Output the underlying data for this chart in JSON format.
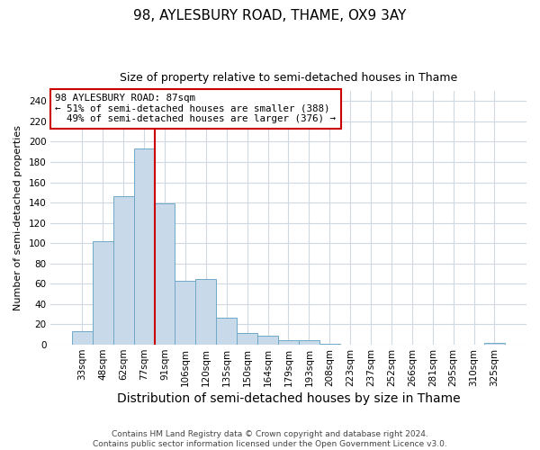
{
  "title1": "98, AYLESBURY ROAD, THAME, OX9 3AY",
  "title2": "Size of property relative to semi-detached houses in Thame",
  "xlabel": "Distribution of semi-detached houses by size in Thame",
  "ylabel": "Number of semi-detached properties",
  "bar_labels": [
    "33sqm",
    "48sqm",
    "62sqm",
    "77sqm",
    "91sqm",
    "106sqm",
    "120sqm",
    "135sqm",
    "150sqm",
    "164sqm",
    "179sqm",
    "193sqm",
    "208sqm",
    "223sqm",
    "237sqm",
    "252sqm",
    "266sqm",
    "281sqm",
    "295sqm",
    "310sqm",
    "325sqm"
  ],
  "bar_values": [
    13,
    102,
    146,
    193,
    139,
    63,
    65,
    26,
    11,
    9,
    4,
    4,
    1,
    0,
    0,
    0,
    0,
    0,
    0,
    0,
    2
  ],
  "bar_color": "#c8d9ea",
  "bar_edge_color": "#6fa8c8",
  "vline_color": "#cc0000",
  "vline_x_index": 4,
  "annotation_title": "98 AYLESBURY ROAD: 87sqm",
  "annotation_line1": "← 51% of semi-detached houses are smaller (388)",
  "annotation_line2": "  49% of semi-detached houses are larger (376) →",
  "annotation_box_edge_color": "#cc0000",
  "ylim": [
    0,
    250
  ],
  "yticks": [
    0,
    20,
    40,
    60,
    80,
    100,
    120,
    140,
    160,
    180,
    200,
    220,
    240
  ],
  "footer1": "Contains HM Land Registry data © Crown copyright and database right 2024.",
  "footer2": "Contains public sector information licensed under the Open Government Licence v3.0.",
  "bg_color": "#ffffff",
  "grid_color": "#d0d8e4",
  "title1_fontsize": 11,
  "title2_fontsize": 9,
  "xlabel_fontsize": 10,
  "ylabel_fontsize": 8,
  "tick_fontsize": 7.5,
  "footer_fontsize": 6.5
}
